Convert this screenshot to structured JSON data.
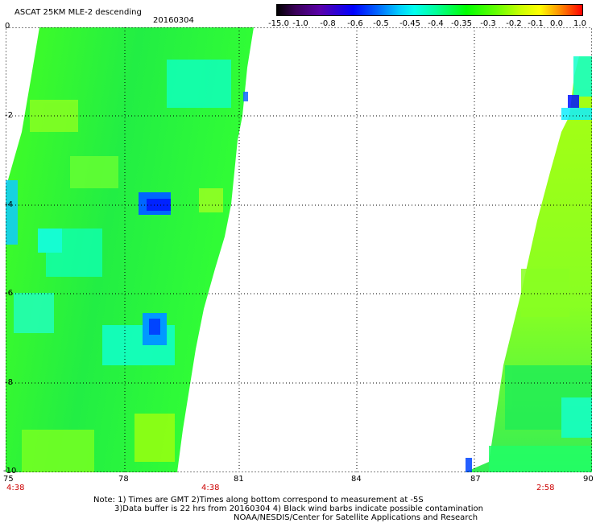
{
  "header": {
    "title": "ASCAT 25KM MLE-2 descending",
    "date": "20160304"
  },
  "colorbar": {
    "labels": [
      "-15.0",
      "-1.0",
      "-0.8",
      "-0.6",
      "-0.5",
      "-0.45",
      "-0.4",
      "-0.35",
      "-0.3",
      "-0.2",
      "-0.1",
      "0.0",
      "1.0"
    ]
  },
  "axes": {
    "y_labels": [
      "0",
      "-2",
      "-4",
      "-6",
      "-8",
      "-10"
    ],
    "x_labels": [
      "75",
      "78",
      "81",
      "84",
      "87",
      "90"
    ]
  },
  "times": {
    "left": "4:38",
    "middle": "4:38",
    "right": "2:58"
  },
  "notes": {
    "line1": "Note: 1) Times are GMT 2)Times along bottom correspond to measurement at -5S",
    "line2": "3)Data buffer is 22 hrs from 20160304 4) Black wind barbs indicate possible contamination",
    "line3": "NOAA/NESDIS/Center for Satellite Applications and Research"
  },
  "colors": {
    "background": "#ffffff",
    "swath_green": "#22ee33",
    "swath_yellowgreen": "#99ff11",
    "swath_cyan": "#11ffcc",
    "swath_blue": "#0011ff",
    "time_label": "#cc0000"
  }
}
